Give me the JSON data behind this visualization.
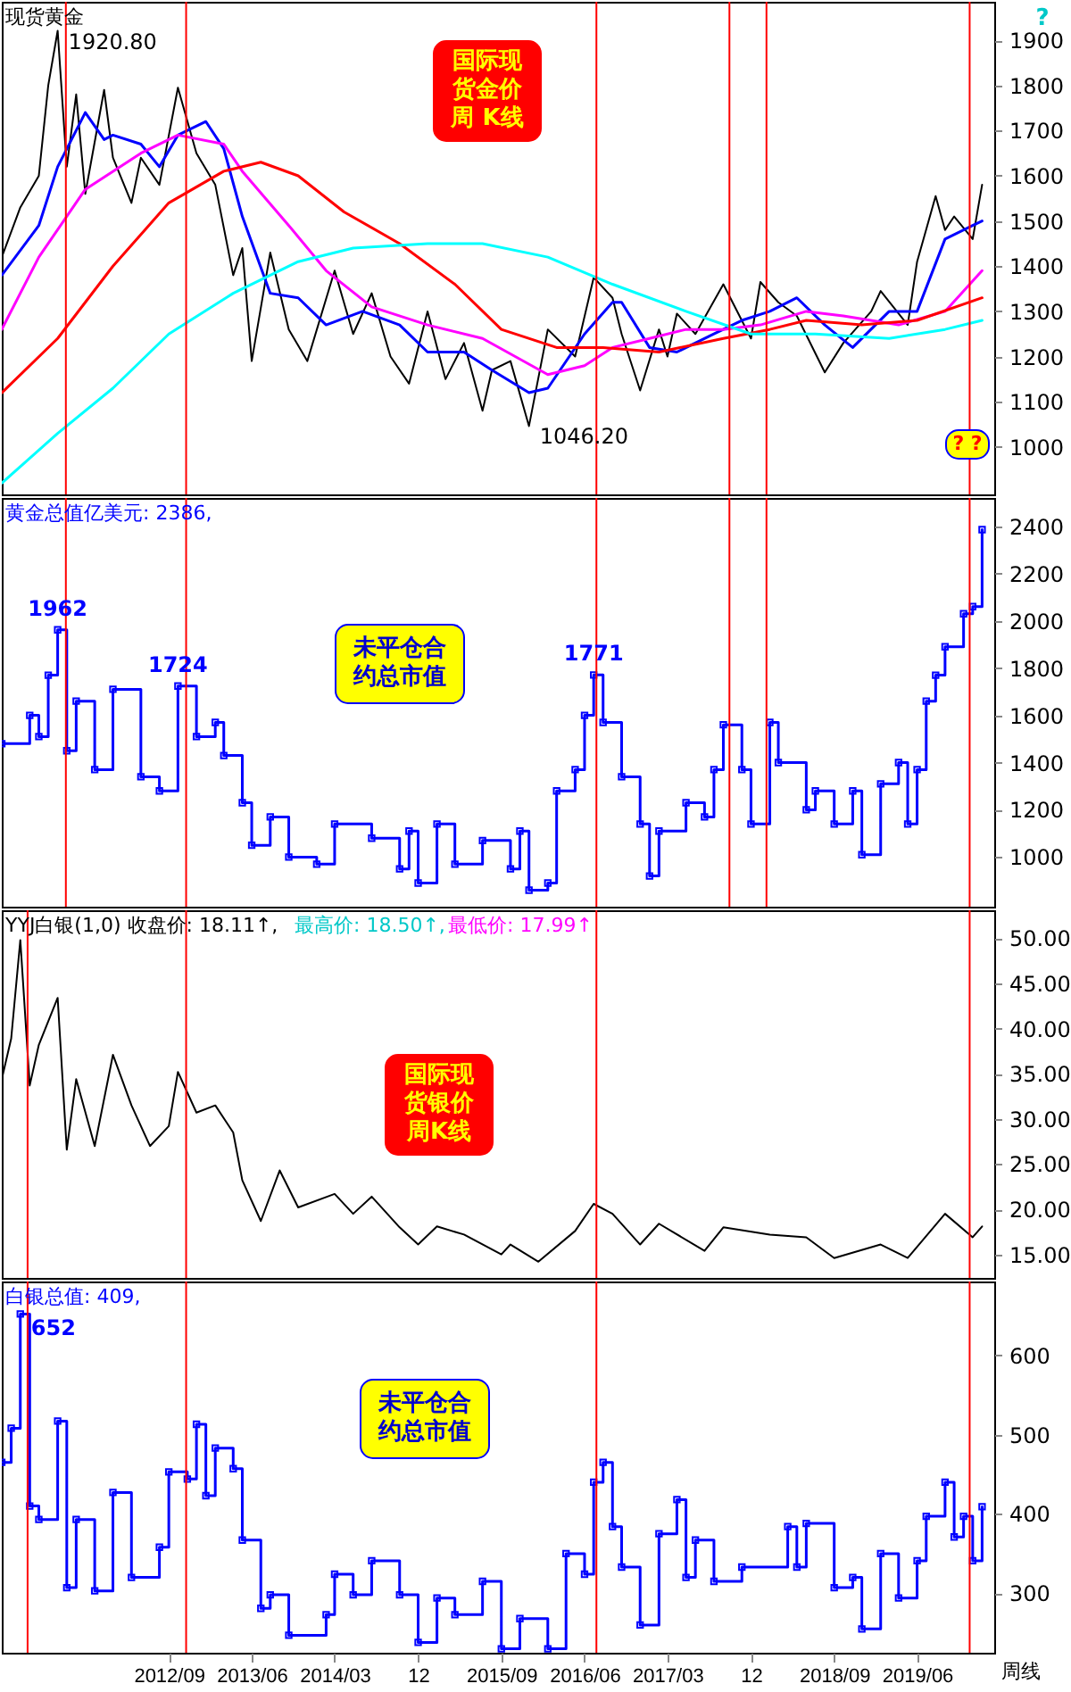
{
  "chart_data": [
    {
      "type": "line",
      "title": "现货黄金",
      "xlim": [
        "2011-03-01",
        "2020-02-10"
      ],
      "ylim": [
        895,
        1985
      ],
      "yticks": [
        1000,
        1100,
        1200,
        1300,
        1400,
        1500,
        1600,
        1700,
        1800,
        1900
      ],
      "tick_labels": "y",
      "grid": false,
      "series": [
        {
          "color": "#000000",
          "x": [
            "2011-03",
            "2011-05",
            "2011-07",
            "2011-08",
            "2011-09",
            "2011-10",
            "2011-11",
            "2011-12",
            "2012-02",
            "2012-03",
            "2012-05",
            "2012-06",
            "2012-08",
            "2012-10",
            "2012-12",
            "2013-02",
            "2013-04",
            "2013-05",
            "2013-06",
            "2013-08",
            "2013-10",
            "2013-12",
            "2014-03",
            "2014-05",
            "2014-07",
            "2014-09",
            "2014-11",
            "2015-01",
            "2015-03",
            "2015-05",
            "2015-07",
            "2015-08",
            "2015-10",
            "2015-12",
            "2016-02",
            "2016-05",
            "2016-07",
            "2016-09",
            "2016-10",
            "2016-12",
            "2017-02",
            "2017-03",
            "2017-04",
            "2017-06",
            "2017-09",
            "2017-12",
            "2018-01",
            "2018-03",
            "2018-05",
            "2018-08",
            "2018-10",
            "2019-01",
            "2019-02",
            "2019-05",
            "2019-06",
            "2019-08",
            "2019-09",
            "2019-10",
            "2019-12",
            "2020-01"
          ],
          "values": [
            1420,
            1530,
            1600,
            1800,
            1920.8,
            1620,
            1780,
            1560,
            1790,
            1640,
            1540,
            1640,
            1580,
            1795,
            1650,
            1580,
            1380,
            1440,
            1190,
            1430,
            1260,
            1190,
            1390,
            1250,
            1340,
            1200,
            1140,
            1300,
            1150,
            1230,
            1080,
            1170,
            1190,
            1046.2,
            1260,
            1200,
            1375,
            1330,
            1250,
            1125,
            1260,
            1200,
            1295,
            1250,
            1360,
            1240,
            1365,
            1320,
            1290,
            1165,
            1230,
            1300,
            1345,
            1270,
            1410,
            1555,
            1480,
            1510,
            1460,
            1580
          ]
        },
        {
          "color": "#0000ff",
          "x": [
            "2011-03",
            "2011-07",
            "2011-09",
            "2011-12",
            "2012-02",
            "2012-03",
            "2012-06",
            "2012-08",
            "2012-10",
            "2013-01",
            "2013-03",
            "2013-05",
            "2013-08",
            "2013-11",
            "2014-02",
            "2014-06",
            "2014-10",
            "2015-01",
            "2015-05",
            "2015-08",
            "2015-12",
            "2016-02",
            "2016-06",
            "2016-09",
            "2016-10",
            "2017-01",
            "2017-04",
            "2017-08",
            "2017-11",
            "2018-02",
            "2018-05",
            "2018-08",
            "2018-11",
            "2019-03",
            "2019-06",
            "2019-09",
            "2019-12",
            "2020-01"
          ],
          "values": [
            1380,
            1490,
            1620,
            1740,
            1680,
            1690,
            1670,
            1620,
            1690,
            1720,
            1660,
            1510,
            1340,
            1330,
            1270,
            1300,
            1270,
            1210,
            1210,
            1170,
            1120,
            1130,
            1250,
            1320,
            1320,
            1220,
            1210,
            1250,
            1280,
            1300,
            1330,
            1270,
            1220,
            1300,
            1300,
            1460,
            1490,
            1500
          ]
        },
        {
          "color": "#ff00ff",
          "x": [
            "2011-03",
            "2011-07",
            "2011-12",
            "2012-06",
            "2012-10",
            "2013-03",
            "2013-05",
            "2013-10",
            "2014-02",
            "2014-07",
            "2015-01",
            "2015-07",
            "2016-02",
            "2016-06",
            "2016-09",
            "2017-01",
            "2017-05",
            "2017-09",
            "2018-01",
            "2018-06",
            "2018-10",
            "2019-04",
            "2019-09",
            "2020-01"
          ],
          "values": [
            1260,
            1420,
            1570,
            1650,
            1690,
            1670,
            1610,
            1490,
            1390,
            1310,
            1270,
            1240,
            1160,
            1180,
            1220,
            1240,
            1260,
            1260,
            1270,
            1300,
            1290,
            1270,
            1300,
            1390
          ]
        },
        {
          "color": "#ff0000",
          "x": [
            "2011-03",
            "2011-09",
            "2012-03",
            "2012-09",
            "2013-03",
            "2013-07",
            "2013-11",
            "2014-04",
            "2014-10",
            "2015-04",
            "2015-09",
            "2016-03",
            "2016-08",
            "2017-02",
            "2017-09",
            "2018-02",
            "2018-06",
            "2018-12",
            "2019-06",
            "2020-01"
          ],
          "values": [
            1120,
            1240,
            1400,
            1540,
            1610,
            1630,
            1600,
            1520,
            1450,
            1360,
            1260,
            1220,
            1220,
            1210,
            1240,
            1260,
            1280,
            1270,
            1280,
            1330
          ]
        },
        {
          "color": "#00ffff",
          "x": [
            "2011-03",
            "2011-09",
            "2012-03",
            "2012-09",
            "2013-04",
            "2013-11",
            "2014-05",
            "2015-01",
            "2015-07",
            "2016-02",
            "2016-09",
            "2017-05",
            "2017-12",
            "2018-07",
            "2019-03",
            "2019-09",
            "2020-01"
          ],
          "values": [
            920,
            1030,
            1130,
            1250,
            1340,
            1410,
            1440,
            1450,
            1450,
            1420,
            1360,
            1300,
            1250,
            1250,
            1240,
            1260,
            1280
          ]
        }
      ],
      "ref_lines": [
        {
          "axis": "x",
          "value": "2011-09-28",
          "color": "#ff0000"
        },
        {
          "axis": "x",
          "value": "2012-10-28",
          "color": "#ff0000"
        },
        {
          "axis": "x",
          "value": "2016-07-10",
          "color": "#ff0000"
        },
        {
          "axis": "x",
          "value": "2017-09-21",
          "color": "#ff0000"
        },
        {
          "axis": "x",
          "value": "2018-01-21",
          "color": "#ff0000"
        },
        {
          "axis": "x",
          "value": "2019-11-21",
          "color": "#ff0000"
        }
      ],
      "annotations": [
        {
          "text": "1920.80",
          "x": "2011-09",
          "y": 1920.8
        },
        {
          "text": "1046.20",
          "x": "2015-12",
          "y": 1046.2
        },
        "国际现货金价周 K线",
        "? ?",
        "?"
      ]
    },
    {
      "type": "step",
      "title": "黄金总值亿美元: 2386,",
      "xlim": [
        "2011-03-01",
        "2020-02-10"
      ],
      "ylim": [
        790,
        2520
      ],
      "yticks": [
        1000,
        1200,
        1400,
        1600,
        1800,
        2000,
        2200,
        2400
      ],
      "tick_labels": "y",
      "grid": false,
      "marker": "square",
      "series": [
        {
          "color": "#0000ff",
          "x": [
            "2011-03",
            "2011-06",
            "2011-07",
            "2011-08",
            "2011-09",
            "2011-10",
            "2011-11",
            "2012-01",
            "2012-03",
            "2012-06",
            "2012-08",
            "2012-10",
            "2012-12",
            "2013-02",
            "2013-03",
            "2013-05",
            "2013-06",
            "2013-08",
            "2013-10",
            "2014-01",
            "2014-03",
            "2014-07",
            "2014-10",
            "2014-11",
            "2014-12",
            "2015-02",
            "2015-04",
            "2015-07",
            "2015-10",
            "2015-11",
            "2015-12",
            "2016-02",
            "2016-03",
            "2016-05",
            "2016-06",
            "2016-07",
            "2016-08",
            "2016-10",
            "2016-12",
            "2017-01",
            "2017-02",
            "2017-05",
            "2017-07",
            "2017-08",
            "2017-09",
            "2017-11",
            "2017-12",
            "2018-02",
            "2018-03",
            "2018-06",
            "2018-07",
            "2018-09",
            "2018-11",
            "2018-12",
            "2019-02",
            "2019-04",
            "2019-05",
            "2019-06",
            "2019-07",
            "2019-08",
            "2019-09",
            "2019-11",
            "2019-12",
            "2020-01"
          ],
          "values": [
            1480,
            1600,
            1510,
            1770,
            1962,
            1450,
            1660,
            1370,
            1710,
            1340,
            1280,
            1724,
            1510,
            1570,
            1430,
            1230,
            1050,
            1170,
            1000,
            970,
            1140,
            1080,
            950,
            1110,
            890,
            1140,
            970,
            1070,
            950,
            1110,
            860,
            890,
            1280,
            1370,
            1600,
            1771,
            1570,
            1340,
            1140,
            920,
            1110,
            1230,
            1170,
            1370,
            1560,
            1370,
            1140,
            1570,
            1400,
            1200,
            1280,
            1140,
            1280,
            1010,
            1310,
            1400,
            1140,
            1370,
            1660,
            1770,
            1890,
            2030,
            2060,
            2386
          ]
        }
      ],
      "ref_lines": [
        {
          "axis": "x",
          "value": "2011-09-28",
          "color": "#ff0000"
        },
        {
          "axis": "x",
          "value": "2012-10-28",
          "color": "#ff0000"
        },
        {
          "axis": "x",
          "value": "2016-07-10",
          "color": "#ff0000"
        },
        {
          "axis": "x",
          "value": "2017-09-21",
          "color": "#ff0000"
        },
        {
          "axis": "x",
          "value": "2018-01-21",
          "color": "#ff0000"
        },
        {
          "axis": "x",
          "value": "2019-11-21",
          "color": "#ff0000"
        }
      ],
      "annotations": [
        {
          "text": "1962",
          "x": "2011-09",
          "y": 1962
        },
        {
          "text": "1724",
          "x": "2012-10",
          "y": 1724
        },
        {
          "text": "1771",
          "x": "2016-07",
          "y": 1771
        },
        "未平仓合约总市值"
      ]
    },
    {
      "type": "line",
      "title": "YYJ白银(1,0) 收盘价: 18.11↑,",
      "xlim": [
        "2011-03-01",
        "2020-02-10"
      ],
      "ylim": [
        12.4,
        53.1
      ],
      "yticks": [
        {
          "value": 15,
          "label": "15.00"
        },
        {
          "value": 20,
          "label": "20.00"
        },
        {
          "value": 25,
          "label": "25.00"
        },
        {
          "value": 30,
          "label": "30.00"
        },
        {
          "value": 35,
          "label": "35.00"
        },
        {
          "value": 40,
          "label": "40.00"
        },
        {
          "value": 45,
          "label": "45.00"
        },
        {
          "value": 50,
          "label": "50.00"
        }
      ],
      "tick_labels": "y",
      "grid": false,
      "series": [
        {
          "color": "#000000",
          "x": [
            "2011-03",
            "2011-04",
            "2011-05",
            "2011-06",
            "2011-07",
            "2011-09",
            "2011-10",
            "2011-11",
            "2012-01",
            "2012-03",
            "2012-05",
            "2012-07",
            "2012-09",
            "2012-10",
            "2012-12",
            "2013-02",
            "2013-04",
            "2013-05",
            "2013-07",
            "2013-09",
            "2013-11",
            "2014-03",
            "2014-05",
            "2014-07",
            "2014-10",
            "2014-12",
            "2015-02",
            "2015-05",
            "2015-09",
            "2015-10",
            "2016-01",
            "2016-05",
            "2016-07",
            "2016-09",
            "2016-12",
            "2017-02",
            "2017-07",
            "2017-09",
            "2018-02",
            "2018-06",
            "2018-09",
            "2019-02",
            "2019-05",
            "2019-09",
            "2019-12",
            "2020-01"
          ],
          "values": [
            34.4,
            38.9,
            49.8,
            33.7,
            38.2,
            43.4,
            26.6,
            34.4,
            27.0,
            37.1,
            31.5,
            27.0,
            29.2,
            35.2,
            30.7,
            31.5,
            28.5,
            23.2,
            18.7,
            24.3,
            20.2,
            21.7,
            19.5,
            21.4,
            18.0,
            16.1,
            18.1,
            17.2,
            15.0,
            16.1,
            14.2,
            17.6,
            20.6,
            19.5,
            16.1,
            18.4,
            15.4,
            18.0,
            17.2,
            16.9,
            14.6,
            16.1,
            14.6,
            19.5,
            16.9,
            18.1
          ]
        }
      ],
      "ref_lines": [
        {
          "axis": "x",
          "value": "2011-05-25",
          "color": "#ff0000"
        },
        {
          "axis": "x",
          "value": "2012-10-28",
          "color": "#ff0000"
        },
        {
          "axis": "x",
          "value": "2016-07-10",
          "color": "#ff0000"
        },
        {
          "axis": "x",
          "value": "2019-11-21",
          "color": "#ff0000"
        }
      ],
      "annotations": [
        "最高价: 18.50↑,",
        "最低价: 17.99↑",
        "国际现货银价周K线"
      ]
    },
    {
      "type": "step",
      "title": "白银总值: 409,",
      "xlim": [
        "2011-03-01",
        "2020-02-10"
      ],
      "ylim": [
        225,
        693
      ],
      "yticks": [
        300,
        400,
        500,
        600
      ],
      "xticks": [
        {
          "value": "2012-09",
          "label": "2012/09"
        },
        {
          "value": "2013-06",
          "label": "2013/06"
        },
        {
          "value": "2014-03",
          "label": "2014/03"
        },
        {
          "value": "2014-12",
          "label": "12"
        },
        {
          "value": "2015-09",
          "label": "2015/09"
        },
        {
          "value": "2016-06",
          "label": "2016/06"
        },
        {
          "value": "2017-03",
          "label": "2017/03"
        },
        {
          "value": "2017-12",
          "label": "12"
        },
        {
          "value": "2018-09",
          "label": "2018/09"
        },
        {
          "value": "2019-06",
          "label": "2019/06"
        }
      ],
      "grid": false,
      "marker": "square",
      "series": [
        {
          "color": "#0000ff",
          "x": [
            "2011-03",
            "2011-04",
            "2011-05",
            "2011-06",
            "2011-07",
            "2011-09",
            "2011-10",
            "2011-11",
            "2012-01",
            "2012-03",
            "2012-05",
            "2012-08",
            "2012-09",
            "2012-11",
            "2012-12",
            "2013-01",
            "2013-02",
            "2013-04",
            "2013-05",
            "2013-07",
            "2013-08",
            "2013-10",
            "2014-02",
            "2014-03",
            "2014-05",
            "2014-07",
            "2014-10",
            "2014-12",
            "2015-02",
            "2015-04",
            "2015-07",
            "2015-09",
            "2015-11",
            "2016-02",
            "2016-04",
            "2016-06",
            "2016-07",
            "2016-08",
            "2016-09",
            "2016-10",
            "2016-12",
            "2017-02",
            "2017-04",
            "2017-05",
            "2017-06",
            "2017-08",
            "2017-11",
            "2018-04",
            "2018-05",
            "2018-06",
            "2018-09",
            "2018-11",
            "2018-12",
            "2019-02",
            "2019-04",
            "2019-06",
            "2019-07",
            "2019-09",
            "2019-10",
            "2019-11",
            "2019-12",
            "2020-01"
          ],
          "values": [
            465,
            508,
            652,
            410,
            393,
            517,
            307,
            393,
            303,
            427,
            320,
            358,
            453,
            444,
            513,
            423,
            483,
            457,
            367,
            281,
            298,
            247,
            273,
            324,
            298,
            341,
            298,
            238,
            294,
            273,
            315,
            230,
            268,
            230,
            350,
            324,
            440,
            465,
            384,
            333,
            260,
            375,
            418,
            320,
            367,
            315,
            333,
            384,
            333,
            388,
            307,
            320,
            255,
            350,
            294,
            341,
            397,
            440,
            371,
            397,
            341,
            409
          ]
        }
      ],
      "ref_lines": [
        {
          "axis": "x",
          "value": "2011-05-25",
          "color": "#ff0000"
        },
        {
          "axis": "x",
          "value": "2012-10-28",
          "color": "#ff0000"
        },
        {
          "axis": "x",
          "value": "2016-07-10",
          "color": "#ff0000"
        },
        {
          "axis": "x",
          "value": "2019-11-21",
          "color": "#ff0000"
        }
      ],
      "annotations": [
        {
          "text": "652",
          "x": "2011-05",
          "y": 652
        },
        "未平仓合约总市值",
        "周线"
      ]
    }
  ]
}
